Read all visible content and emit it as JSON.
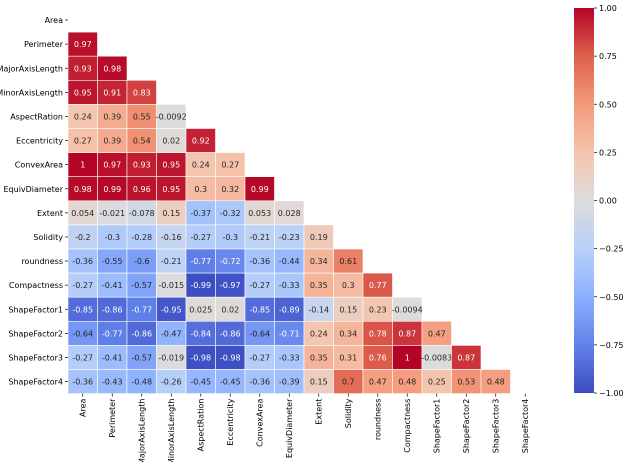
{
  "chart_data": {
    "type": "heatmap",
    "title": "",
    "colormap": "coolwarm",
    "vmin": -1.0,
    "vmax": 1.0,
    "mask": "upper-triangle-including-diagonal",
    "labels": [
      "Area",
      "Perimeter",
      "MajorAxisLength",
      "MinorAxisLength",
      "AspectRation",
      "Eccentricity",
      "ConvexArea",
      "EquivDiameter",
      "Extent",
      "Solidity",
      "roundness",
      "Compactness",
      "ShapeFactor1",
      "ShapeFactor2",
      "ShapeFactor3",
      "ShapeFactor4"
    ],
    "matrix": [
      [],
      [
        0.97
      ],
      [
        0.93,
        0.98
      ],
      [
        0.95,
        0.91,
        0.83
      ],
      [
        0.24,
        0.39,
        0.55,
        -0.0092
      ],
      [
        0.27,
        0.39,
        0.54,
        0.02,
        0.92
      ],
      [
        1,
        0.97,
        0.93,
        0.95,
        0.24,
        0.27
      ],
      [
        0.98,
        0.99,
        0.96,
        0.95,
        0.3,
        0.32,
        0.99
      ],
      [
        0.054,
        -0.021,
        -0.078,
        0.15,
        -0.37,
        -0.32,
        0.053,
        0.028
      ],
      [
        -0.2,
        -0.3,
        -0.28,
        -0.16,
        -0.27,
        -0.3,
        -0.21,
        -0.23,
        0.19
      ],
      [
        -0.36,
        -0.55,
        -0.6,
        -0.21,
        -0.77,
        -0.72,
        -0.36,
        -0.44,
        0.34,
        0.61
      ],
      [
        -0.27,
        -0.41,
        -0.57,
        -0.015,
        -0.99,
        -0.97,
        -0.27,
        -0.33,
        0.35,
        0.3,
        0.77
      ],
      [
        -0.85,
        -0.86,
        -0.77,
        -0.95,
        0.025,
        0.02,
        -0.85,
        -0.89,
        -0.14,
        0.15,
        0.23,
        -0.0094
      ],
      [
        -0.64,
        -0.77,
        -0.86,
        -0.47,
        -0.84,
        -0.86,
        -0.64,
        -0.71,
        0.24,
        0.34,
        0.78,
        0.87,
        0.47
      ],
      [
        -0.27,
        -0.41,
        -0.57,
        -0.019,
        -0.98,
        -0.98,
        -0.27,
        -0.33,
        0.35,
        0.31,
        0.76,
        1,
        -0.0083,
        0.87
      ],
      [
        -0.36,
        -0.43,
        -0.48,
        -0.26,
        -0.45,
        -0.45,
        -0.36,
        -0.39,
        0.15,
        0.7,
        0.47,
        0.48,
        0.25,
        0.53,
        0.48
      ]
    ],
    "cell_labels": [
      [],
      [
        "0.97"
      ],
      [
        "0.93",
        "0.98"
      ],
      [
        "0.95",
        "0.91",
        "0.83"
      ],
      [
        "0.24",
        "0.39",
        "0.55",
        "-0.0092"
      ],
      [
        "0.27",
        "0.39",
        "0.54",
        "0.02",
        "0.92"
      ],
      [
        "1",
        "0.97",
        "0.93",
        "0.95",
        "0.24",
        "0.27"
      ],
      [
        "0.98",
        "0.99",
        "0.96",
        "0.95",
        "0.3",
        "0.32",
        "0.99"
      ],
      [
        "0.054",
        "-0.021",
        "-0.078",
        "0.15",
        "-0.37",
        "-0.32",
        "0.053",
        "0.028"
      ],
      [
        "-0.2",
        "-0.3",
        "-0.28",
        "-0.16",
        "-0.27",
        "-0.3",
        "-0.21",
        "-0.23",
        "0.19"
      ],
      [
        "-0.36",
        "-0.55",
        "-0.6",
        "-0.21",
        "-0.77",
        "-0.72",
        "-0.36",
        "-0.44",
        "0.34",
        "0.61"
      ],
      [
        "-0.27",
        "-0.41",
        "-0.57",
        "-0.015",
        "-0.99",
        "-0.97",
        "-0.27",
        "-0.33",
        "0.35",
        "0.3",
        "0.77"
      ],
      [
        "-0.85",
        "-0.86",
        "-0.77",
        "-0.95",
        "0.025",
        "0.02",
        "-0.85",
        "-0.89",
        "-0.14",
        "0.15",
        "0.23",
        "-0.0094"
      ],
      [
        "-0.64",
        "-0.77",
        "-0.86",
        "-0.47",
        "-0.84",
        "-0.86",
        "-0.64",
        "-0.71",
        "0.24",
        "0.34",
        "0.78",
        "0.87",
        "0.47"
      ],
      [
        "-0.27",
        "-0.41",
        "-0.57",
        "-0.019",
        "-0.98",
        "-0.98",
        "-0.27",
        "-0.33",
        "0.35",
        "0.31",
        "0.76",
        "1",
        "-0.0083",
        "0.87"
      ],
      [
        "-0.36",
        "-0.43",
        "-0.48",
        "-0.26",
        "-0.45",
        "-0.45",
        "-0.36",
        "-0.39",
        "0.15",
        "0.7",
        "0.47",
        "0.48",
        "0.25",
        "0.53",
        "0.48"
      ]
    ],
    "colorbar": {
      "ticks": [
        1.0,
        0.75,
        0.5,
        0.25,
        0.0,
        -0.25,
        -0.5,
        -0.75,
        -1.0
      ],
      "tick_labels": [
        "1.00",
        "0.75",
        "0.50",
        "0.25",
        "0.00",
        "−0.25",
        "−0.50",
        "−0.75",
        "−1.00"
      ]
    }
  }
}
